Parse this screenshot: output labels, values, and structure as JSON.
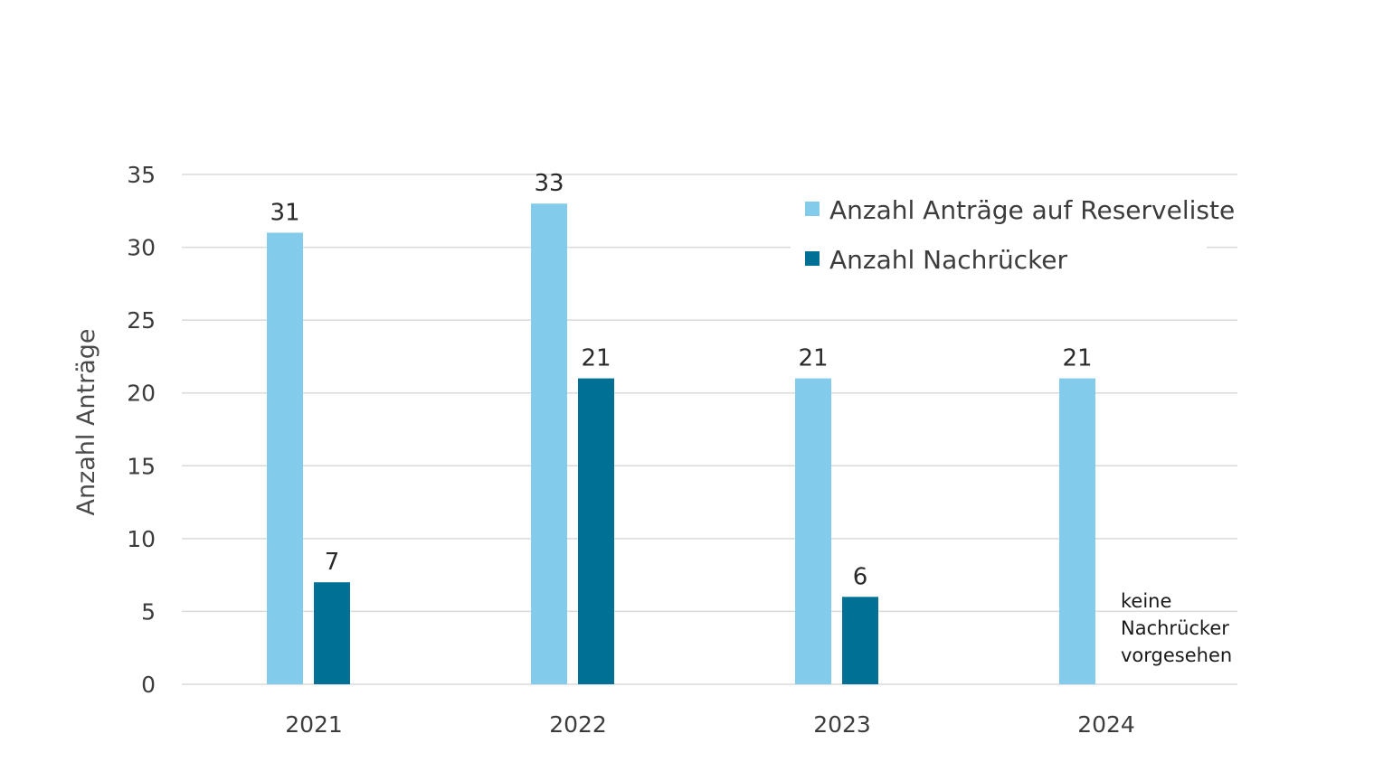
{
  "chart_data": {
    "type": "bar",
    "ylabel": "Anzahl Anträge",
    "xlabel": "",
    "ylim": [
      0,
      35
    ],
    "yticks": [
      0,
      5,
      10,
      15,
      20,
      25,
      30,
      35
    ],
    "grid": true,
    "legend_position": "top-right",
    "categories": [
      "2021",
      "2022",
      "2023",
      "2024"
    ],
    "series": [
      {
        "name": "Anzahl Anträge auf Reserveliste",
        "color": "#82cbea",
        "values": [
          31,
          33,
          21,
          21
        ]
      },
      {
        "name": "Anzahl Nachrücker",
        "color": "#007194",
        "values": [
          7,
          21,
          6,
          null
        ]
      }
    ],
    "annotations": [
      {
        "category": "2024",
        "series": "Anzahl Nachrücker",
        "lines": [
          "keine",
          "Nachrücker",
          "vorgesehen"
        ]
      }
    ]
  }
}
